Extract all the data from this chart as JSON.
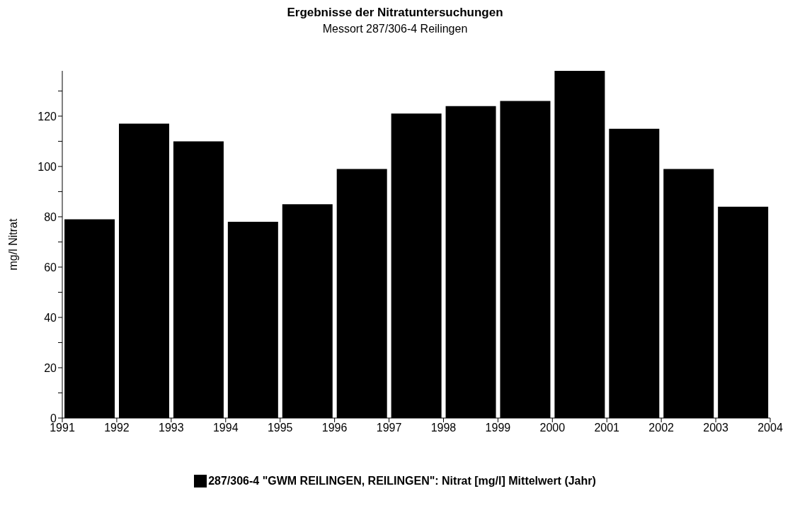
{
  "chart_data": {
    "type": "histogram",
    "title": "Ergebnisse der Nitratuntersuchungen",
    "subtitle": "Messort 287/306-4 Reilingen",
    "ylabel": "mg/l Nitrat",
    "bins": [
      1991,
      1992,
      1993,
      1994,
      1995,
      1996,
      1997,
      1998,
      1999,
      2000,
      2001,
      2002,
      2003,
      2004
    ],
    "series": [
      {
        "name": "287/306-4 \"GWM REILINGEN, REILINGEN\": Nitrat [mg/l] Mittelwert (Jahr)",
        "color": "#000000",
        "values": [
          79,
          117,
          110,
          78,
          85,
          99,
          121,
          124,
          126,
          138,
          115,
          99,
          84
        ]
      }
    ],
    "xlim": [
      1991,
      2004
    ],
    "xticks": [
      1991,
      1992,
      1993,
      1994,
      1995,
      1996,
      1997,
      1998,
      1999,
      2000,
      2001,
      2002,
      2003,
      2004
    ],
    "ylim": [
      0,
      138
    ],
    "yticks": [
      0,
      {
        "value": 10,
        "label": null
      },
      20,
      {
        "value": 30,
        "label": null
      },
      40,
      {
        "value": 50,
        "label": null
      },
      60,
      {
        "value": 70,
        "label": null
      },
      80,
      {
        "value": 90,
        "label": null
      },
      100,
      {
        "value": 110,
        "label": null
      },
      120,
      {
        "value": 130,
        "label": null
      }
    ],
    "grid": false,
    "legend": "bottom"
  }
}
